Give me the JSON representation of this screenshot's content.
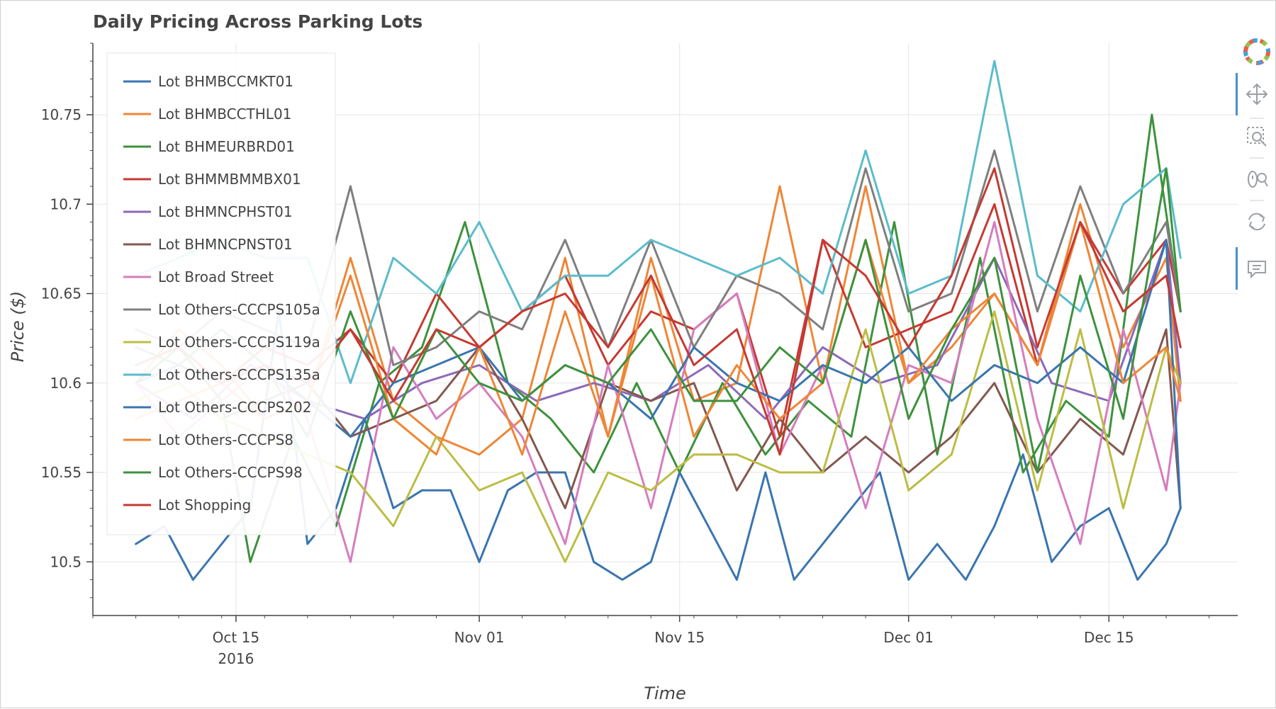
{
  "chart_data": {
    "type": "line",
    "title": "Daily Pricing Across Parking Lots",
    "xlabel": "Time",
    "ylabel": "Price ($)",
    "x_axis_type": "datetime",
    "x_range": [
      "2016-10-05",
      "2016-12-24"
    ],
    "ylim": [
      10.47,
      10.79
    ],
    "y_ticks": [
      10.5,
      10.55,
      10.6,
      10.65,
      10.7,
      10.75
    ],
    "y_tick_labels": [
      "10.5",
      "10.55",
      "10.6",
      "10.65",
      "10.7",
      "10.75"
    ],
    "x_ticks": [
      {
        "date": "2016-10-15",
        "label": "Oct 15",
        "sublabel": "2016"
      },
      {
        "date": "2016-11-01",
        "label": "Nov 01",
        "sublabel": ""
      },
      {
        "date": "2016-11-15",
        "label": "Nov 15",
        "sublabel": ""
      },
      {
        "date": "2016-12-01",
        "label": "Dec 01",
        "sublabel": ""
      },
      {
        "date": "2016-12-15",
        "label": "Dec 15",
        "sublabel": ""
      }
    ],
    "grid": true,
    "legend_position": "top-left",
    "series": [
      {
        "name": "Lot BHMBCCMKT01",
        "color": "#3a75af",
        "x": [
          "2016-10-08",
          "2016-10-10",
          "2016-10-12",
          "2016-10-14",
          "2016-10-16",
          "2016-10-18",
          "2016-10-20",
          "2016-10-22",
          "2016-10-24",
          "2016-10-26",
          "2016-10-28",
          "2016-10-30",
          "2016-11-01",
          "2016-11-03",
          "2016-11-05",
          "2016-11-07",
          "2016-11-09",
          "2016-11-11",
          "2016-11-13",
          "2016-11-15",
          "2016-11-17",
          "2016-11-19",
          "2016-11-21",
          "2016-11-23",
          "2016-11-25",
          "2016-11-27",
          "2016-11-29",
          "2016-12-01",
          "2016-12-03",
          "2016-12-05",
          "2016-12-07",
          "2016-12-09",
          "2016-12-11",
          "2016-12-13",
          "2016-12-15",
          "2016-12-17",
          "2016-12-19",
          "2016-12-20"
        ],
        "values": [
          10.51,
          10.52,
          10.49,
          10.51,
          10.53,
          10.64,
          10.51,
          10.53,
          10.58,
          10.53,
          10.54,
          10.54,
          10.5,
          10.54,
          10.55,
          10.55,
          10.5,
          10.49,
          10.5,
          10.55,
          10.52,
          10.49,
          10.55,
          10.49,
          10.51,
          10.53,
          10.55,
          10.49,
          10.51,
          10.49,
          10.52,
          10.56,
          10.5,
          10.52,
          10.53,
          10.49,
          10.51,
          10.53
        ]
      },
      {
        "name": "Lot BHMBCCTHL01",
        "color": "#ef8636",
        "x": [
          "2016-10-08",
          "2016-10-11",
          "2016-10-14",
          "2016-10-17",
          "2016-10-20",
          "2016-10-23",
          "2016-10-26",
          "2016-10-29",
          "2016-11-01",
          "2016-11-04",
          "2016-11-07",
          "2016-11-10",
          "2016-11-13",
          "2016-11-16",
          "2016-11-19",
          "2016-11-22",
          "2016-11-25",
          "2016-11-28",
          "2016-12-01",
          "2016-12-04",
          "2016-12-07",
          "2016-12-10",
          "2016-12-13",
          "2016-12-16",
          "2016-12-19",
          "2016-12-20"
        ],
        "values": [
          10.6,
          10.63,
          10.61,
          10.58,
          10.59,
          10.67,
          10.59,
          10.57,
          10.56,
          10.58,
          10.67,
          10.57,
          10.67,
          10.59,
          10.6,
          10.71,
          10.6,
          10.71,
          10.6,
          10.62,
          10.65,
          10.61,
          10.7,
          10.62,
          10.67,
          10.59
        ]
      },
      {
        "name": "Lot BHMEURBRD01",
        "color": "#3d923d",
        "x": [
          "2016-10-08",
          "2016-10-11",
          "2016-10-14",
          "2016-10-16",
          "2016-10-19",
          "2016-10-22",
          "2016-10-25",
          "2016-10-28",
          "2016-10-31",
          "2016-11-03",
          "2016-11-06",
          "2016-11-09",
          "2016-11-12",
          "2016-11-15",
          "2016-11-18",
          "2016-11-21",
          "2016-11-24",
          "2016-11-27",
          "2016-11-30",
          "2016-12-03",
          "2016-12-06",
          "2016-12-09",
          "2016-12-12",
          "2016-12-15",
          "2016-12-18",
          "2016-12-20"
        ],
        "values": [
          10.6,
          10.62,
          10.59,
          10.5,
          10.57,
          10.52,
          10.6,
          10.62,
          10.69,
          10.6,
          10.58,
          10.55,
          10.6,
          10.55,
          10.6,
          10.56,
          10.59,
          10.57,
          10.69,
          10.56,
          10.67,
          10.55,
          10.59,
          10.57,
          10.75,
          10.64
        ]
      },
      {
        "name": "Lot BHMMBMMBX01",
        "color": "#c53a32",
        "x": [
          "2016-10-08",
          "2016-10-11",
          "2016-10-14",
          "2016-10-17",
          "2016-10-20",
          "2016-10-23",
          "2016-10-26",
          "2016-10-29",
          "2016-11-01",
          "2016-11-04",
          "2016-11-07",
          "2016-11-10",
          "2016-11-13",
          "2016-11-16",
          "2016-11-19",
          "2016-11-22",
          "2016-11-25",
          "2016-11-28",
          "2016-12-01",
          "2016-12-04",
          "2016-12-07",
          "2016-12-10",
          "2016-12-13",
          "2016-12-16",
          "2016-12-19",
          "2016-12-20"
        ],
        "values": [
          10.61,
          10.62,
          10.6,
          10.62,
          10.61,
          10.63,
          10.6,
          10.65,
          10.62,
          10.64,
          10.66,
          10.61,
          10.64,
          10.63,
          10.65,
          10.57,
          10.68,
          10.62,
          10.63,
          10.64,
          10.7,
          10.61,
          10.69,
          10.65,
          10.68,
          10.64
        ]
      },
      {
        "name": "Lot BHMNCPHST01",
        "color": "#8d69b8",
        "x": [
          "2016-10-08",
          "2016-10-12",
          "2016-10-16",
          "2016-10-20",
          "2016-10-24",
          "2016-10-28",
          "2016-11-01",
          "2016-11-05",
          "2016-11-09",
          "2016-11-13",
          "2016-11-17",
          "2016-11-21",
          "2016-11-25",
          "2016-11-29",
          "2016-12-03",
          "2016-12-07",
          "2016-12-11",
          "2016-12-15",
          "2016-12-19",
          "2016-12-20"
        ],
        "values": [
          10.6,
          10.58,
          10.61,
          10.59,
          10.58,
          10.6,
          10.61,
          10.59,
          10.6,
          10.59,
          10.61,
          10.58,
          10.62,
          10.6,
          10.61,
          10.67,
          10.6,
          10.59,
          10.68,
          10.6
        ]
      },
      {
        "name": "Lot BHMNCPNST01",
        "color": "#84584e",
        "x": [
          "2016-10-08",
          "2016-10-11",
          "2016-10-14",
          "2016-10-17",
          "2016-10-20",
          "2016-10-23",
          "2016-10-26",
          "2016-10-29",
          "2016-11-01",
          "2016-11-04",
          "2016-11-07",
          "2016-11-10",
          "2016-11-13",
          "2016-11-16",
          "2016-11-19",
          "2016-11-22",
          "2016-11-25",
          "2016-11-28",
          "2016-12-01",
          "2016-12-04",
          "2016-12-07",
          "2016-12-10",
          "2016-12-13",
          "2016-12-16",
          "2016-12-19",
          "2016-12-20"
        ],
        "values": [
          10.59,
          10.6,
          10.58,
          10.59,
          10.6,
          10.57,
          10.58,
          10.59,
          10.62,
          10.58,
          10.53,
          10.6,
          10.59,
          10.6,
          10.54,
          10.58,
          10.55,
          10.57,
          10.55,
          10.57,
          10.6,
          10.55,
          10.58,
          10.56,
          10.63,
          10.53
        ]
      },
      {
        "name": "Lot Broad Street",
        "color": "#d57dbe",
        "x": [
          "2016-10-08",
          "2016-10-11",
          "2016-10-14",
          "2016-10-17",
          "2016-10-20",
          "2016-10-23",
          "2016-10-26",
          "2016-10-29",
          "2016-11-01",
          "2016-11-04",
          "2016-11-07",
          "2016-11-10",
          "2016-11-13",
          "2016-11-16",
          "2016-11-19",
          "2016-11-22",
          "2016-11-25",
          "2016-11-28",
          "2016-12-01",
          "2016-12-04",
          "2016-12-07",
          "2016-12-10",
          "2016-12-13",
          "2016-12-16",
          "2016-12-19",
          "2016-12-20"
        ],
        "values": [
          10.6,
          10.57,
          10.59,
          10.61,
          10.58,
          10.5,
          10.62,
          10.58,
          10.6,
          10.57,
          10.51,
          10.61,
          10.53,
          10.63,
          10.65,
          10.56,
          10.61,
          10.53,
          10.61,
          10.6,
          10.69,
          10.58,
          10.51,
          10.63,
          10.54,
          10.6
        ]
      },
      {
        "name": "Lot Others-CCCPS105a",
        "color": "#7f7f7f",
        "x": [
          "2016-10-08",
          "2016-10-11",
          "2016-10-14",
          "2016-10-17",
          "2016-10-20",
          "2016-10-23",
          "2016-10-26",
          "2016-10-29",
          "2016-11-01",
          "2016-11-04",
          "2016-11-07",
          "2016-11-10",
          "2016-11-13",
          "2016-11-16",
          "2016-11-19",
          "2016-11-22",
          "2016-11-25",
          "2016-11-28",
          "2016-12-01",
          "2016-12-04",
          "2016-12-07",
          "2016-12-10",
          "2016-12-13",
          "2016-12-16",
          "2016-12-19",
          "2016-12-20"
        ],
        "values": [
          10.63,
          10.62,
          10.64,
          10.63,
          10.62,
          10.71,
          10.61,
          10.62,
          10.64,
          10.63,
          10.68,
          10.62,
          10.68,
          10.62,
          10.66,
          10.65,
          10.63,
          10.72,
          10.64,
          10.65,
          10.73,
          10.64,
          10.71,
          10.65,
          10.69,
          10.64
        ]
      },
      {
        "name": "Lot Others-CCCPS119a",
        "color": "#bcbd45",
        "x": [
          "2016-10-08",
          "2016-10-11",
          "2016-10-14",
          "2016-10-17",
          "2016-10-20",
          "2016-10-23",
          "2016-10-26",
          "2016-10-29",
          "2016-11-01",
          "2016-11-04",
          "2016-11-07",
          "2016-11-10",
          "2016-11-13",
          "2016-11-16",
          "2016-11-19",
          "2016-11-22",
          "2016-11-25",
          "2016-11-28",
          "2016-12-01",
          "2016-12-04",
          "2016-12-07",
          "2016-12-10",
          "2016-12-13",
          "2016-12-16",
          "2016-12-19",
          "2016-12-20"
        ],
        "values": [
          10.59,
          10.6,
          10.58,
          10.57,
          10.56,
          10.55,
          10.52,
          10.57,
          10.54,
          10.55,
          10.5,
          10.55,
          10.54,
          10.56,
          10.56,
          10.55,
          10.55,
          10.63,
          10.54,
          10.56,
          10.64,
          10.54,
          10.63,
          10.53,
          10.62,
          10.6
        ]
      },
      {
        "name": "Lot Others-CCCPS135a",
        "color": "#5bbccc",
        "x": [
          "2016-10-08",
          "2016-10-11",
          "2016-10-14",
          "2016-10-17",
          "2016-10-20",
          "2016-10-23",
          "2016-10-26",
          "2016-10-29",
          "2016-11-01",
          "2016-11-04",
          "2016-11-07",
          "2016-11-10",
          "2016-11-13",
          "2016-11-16",
          "2016-11-19",
          "2016-11-22",
          "2016-11-25",
          "2016-11-28",
          "2016-12-01",
          "2016-12-04",
          "2016-12-07",
          "2016-12-10",
          "2016-12-13",
          "2016-12-16",
          "2016-12-19",
          "2016-12-20"
        ],
        "values": [
          10.66,
          10.67,
          10.68,
          10.67,
          10.67,
          10.6,
          10.67,
          10.65,
          10.69,
          10.64,
          10.66,
          10.66,
          10.68,
          10.67,
          10.66,
          10.67,
          10.65,
          10.73,
          10.65,
          10.66,
          10.78,
          10.66,
          10.64,
          10.7,
          10.72,
          10.67
        ]
      },
      {
        "name": "Lot Others-CCCPS202",
        "color": "#3a75af",
        "x": [
          "2016-10-08",
          "2016-10-11",
          "2016-10-14",
          "2016-10-17",
          "2016-10-20",
          "2016-10-23",
          "2016-10-26",
          "2016-10-29",
          "2016-11-01",
          "2016-11-04",
          "2016-11-07",
          "2016-11-10",
          "2016-11-13",
          "2016-11-16",
          "2016-11-19",
          "2016-11-22",
          "2016-11-25",
          "2016-11-28",
          "2016-12-01",
          "2016-12-04",
          "2016-12-07",
          "2016-12-10",
          "2016-12-13",
          "2016-12-16",
          "2016-12-19",
          "2016-12-20"
        ],
        "values": [
          10.6,
          10.61,
          10.6,
          10.61,
          10.59,
          10.57,
          10.6,
          10.61,
          10.62,
          10.59,
          10.61,
          10.6,
          10.58,
          10.62,
          10.6,
          10.59,
          10.61,
          10.6,
          10.62,
          10.59,
          10.61,
          10.6,
          10.62,
          10.6,
          10.68,
          10.53
        ]
      },
      {
        "name": "Lot Others-CCCPS8",
        "color": "#ef8636",
        "x": [
          "2016-10-08",
          "2016-10-11",
          "2016-10-14",
          "2016-10-17",
          "2016-10-20",
          "2016-10-23",
          "2016-10-26",
          "2016-10-29",
          "2016-11-01",
          "2016-11-04",
          "2016-11-07",
          "2016-11-10",
          "2016-11-13",
          "2016-11-16",
          "2016-11-19",
          "2016-11-22",
          "2016-11-25",
          "2016-11-28",
          "2016-12-01",
          "2016-12-04",
          "2016-12-07",
          "2016-12-10",
          "2016-12-13",
          "2016-12-16",
          "2016-12-19",
          "2016-12-20"
        ],
        "values": [
          10.58,
          10.59,
          10.6,
          10.58,
          10.59,
          10.66,
          10.58,
          10.56,
          10.62,
          10.56,
          10.64,
          10.57,
          10.66,
          10.57,
          10.61,
          10.58,
          10.6,
          10.68,
          10.6,
          10.63,
          10.65,
          10.61,
          10.69,
          10.6,
          10.62,
          10.59
        ]
      },
      {
        "name": "Lot Others-CCCPS98",
        "color": "#3d923d",
        "x": [
          "2016-10-08",
          "2016-10-11",
          "2016-10-14",
          "2016-10-17",
          "2016-10-20",
          "2016-10-23",
          "2016-10-26",
          "2016-10-29",
          "2016-11-01",
          "2016-11-04",
          "2016-11-07",
          "2016-11-10",
          "2016-11-13",
          "2016-11-16",
          "2016-11-19",
          "2016-11-22",
          "2016-11-25",
          "2016-11-28",
          "2016-12-01",
          "2016-12-04",
          "2016-12-07",
          "2016-12-10",
          "2016-12-13",
          "2016-12-16",
          "2016-12-19",
          "2016-12-20"
        ],
        "values": [
          10.62,
          10.61,
          10.63,
          10.61,
          10.57,
          10.64,
          10.58,
          10.63,
          10.6,
          10.59,
          10.61,
          10.6,
          10.63,
          10.59,
          10.59,
          10.62,
          10.6,
          10.68,
          10.58,
          10.63,
          10.67,
          10.55,
          10.66,
          10.58,
          10.72,
          10.64
        ]
      },
      {
        "name": "Lot Shopping",
        "color": "#c53a32",
        "x": [
          "2016-10-08",
          "2016-10-11",
          "2016-10-14",
          "2016-10-17",
          "2016-10-20",
          "2016-10-23",
          "2016-10-26",
          "2016-10-29",
          "2016-11-01",
          "2016-11-04",
          "2016-11-07",
          "2016-11-10",
          "2016-11-13",
          "2016-11-16",
          "2016-11-19",
          "2016-11-22",
          "2016-11-25",
          "2016-11-28",
          "2016-12-01",
          "2016-12-04",
          "2016-12-07",
          "2016-12-10",
          "2016-12-13",
          "2016-12-16",
          "2016-12-19",
          "2016-12-20"
        ],
        "values": [
          10.61,
          10.62,
          10.6,
          10.61,
          10.6,
          10.63,
          10.59,
          10.63,
          10.62,
          10.64,
          10.65,
          10.62,
          10.66,
          10.61,
          10.63,
          10.56,
          10.68,
          10.66,
          10.62,
          10.66,
          10.72,
          10.62,
          10.69,
          10.64,
          10.66,
          10.62
        ]
      }
    ]
  },
  "toolbar": {
    "tools": [
      "logo-icon",
      "pan-icon",
      "box-zoom-icon",
      "wheel-zoom-icon",
      "reset-icon",
      "hover-icon"
    ]
  }
}
